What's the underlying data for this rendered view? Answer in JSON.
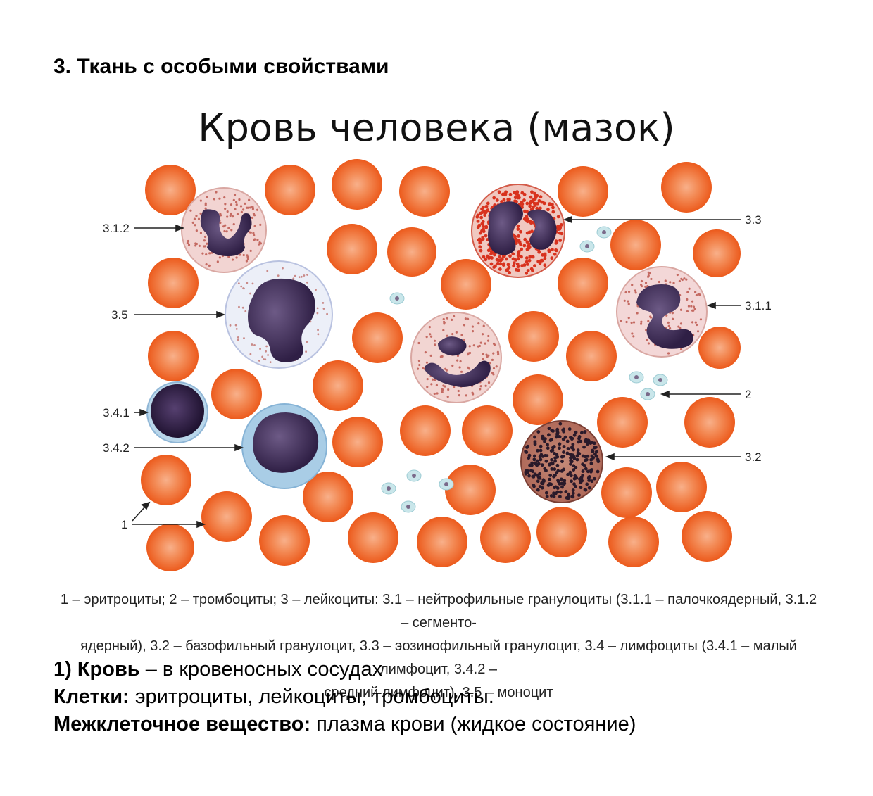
{
  "heading": "3. Ткань с особыми свойствами",
  "figure": {
    "title": "Кровь человека (мазок)",
    "labels": {
      "l312": "3.1.2",
      "l35": "3.5",
      "l341": "3.4.1",
      "l342": "3.4.2",
      "l1": "1",
      "l33": "3.3",
      "l311": "3.1.1",
      "l2": "2",
      "l32": "3.2"
    },
    "caption_lines": [
      "1 – эритроциты; 2 – тромбоциты; 3 – лейкоциты: 3.1 – нейтрофильные гранулоциты (3.1.1 – палочкоядерный, 3.1.2 – сегменто-",
      "ядерный), 3.2 – базофильный гранулоцит, 3.3 – эозинофильный гранулоцит, 3.4 – лимфоциты (3.4.1 – малый лимфоцит, 3.4.2 –",
      "средний лимфоцит), 3.5 – моноцит"
    ]
  },
  "text": {
    "line1_bold": "1) Кровь",
    "line1_rest": " – в кровеносных сосудах",
    "line2_bold": "Клетки:",
    "line2_rest": " эритроциты, лейкоциты, тромбоциты.",
    "line3_bold": "Межклеточное вещество:",
    "line3_rest": " плазма крови (жидкое состояние)"
  },
  "colors": {
    "erythrocyte": "#f06a2a",
    "erythrocyte_center": "#f7a277",
    "nucleus": "#3f2a55",
    "eosinophil_granule": "#d8321e",
    "neutrophil_cytoplasm": "#f3d6d6",
    "monocyte_cytoplasm": "#eef0f8",
    "lymphocyte_cytoplasm": "#a9cde6",
    "platelet": "#bfe0e4"
  }
}
